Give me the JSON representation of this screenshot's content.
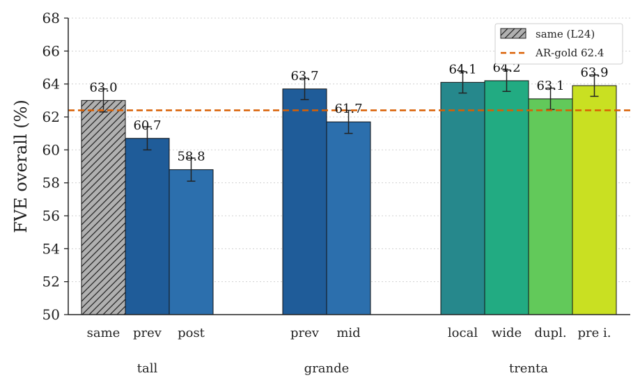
{
  "chart_data": {
    "type": "bar",
    "ylabel": "FVE overall (%)",
    "ylim": [
      50,
      68
    ],
    "yticks": [
      50,
      52,
      54,
      56,
      58,
      60,
      62,
      64,
      66,
      68
    ],
    "grid": "horizontal dotted",
    "legend_position": "top-right",
    "groups": [
      {
        "name": "tall",
        "bars": [
          {
            "category": "same",
            "value": 63.0,
            "label": "63.0",
            "err": 0.7,
            "color": "#b0b0b0",
            "hatch": true
          },
          {
            "category": "prev",
            "value": 60.7,
            "label": "60.7",
            "err": 0.7,
            "color": "#1f5c99"
          },
          {
            "category": "post",
            "value": 58.8,
            "label": "58.8",
            "err": 0.7,
            "color": "#2c6fad"
          }
        ]
      },
      {
        "name": "grande",
        "bars": [
          {
            "category": "prev",
            "value": 63.7,
            "label": "63.7",
            "err": 0.65,
            "color": "#1f5c99"
          },
          {
            "category": "mid",
            "value": 61.7,
            "label": "61.7",
            "err": 0.7,
            "color": "#2c6fad"
          }
        ]
      },
      {
        "name": "trenta",
        "bars": [
          {
            "category": "local",
            "value": 64.1,
            "label": "64.1",
            "err": 0.65,
            "color": "#26888c"
          },
          {
            "category": "wide",
            "value": 64.2,
            "label": "64.2",
            "err": 0.65,
            "color": "#22ab82"
          },
          {
            "category": "dupl.",
            "value": 63.1,
            "label": "63.1",
            "err": 0.65,
            "color": "#62c95a"
          },
          {
            "category": "pre i.",
            "value": 63.9,
            "label": "63.9",
            "err": 0.65,
            "color": "#c9e022"
          }
        ]
      }
    ],
    "reference_line": {
      "value": 62.4,
      "label": "AR-gold 62.4",
      "color": "#d95f02"
    },
    "legend": [
      {
        "label": "same (L24)",
        "kind": "hatched-bar"
      },
      {
        "label": "AR-gold 62.4",
        "kind": "dashed-line"
      }
    ]
  }
}
